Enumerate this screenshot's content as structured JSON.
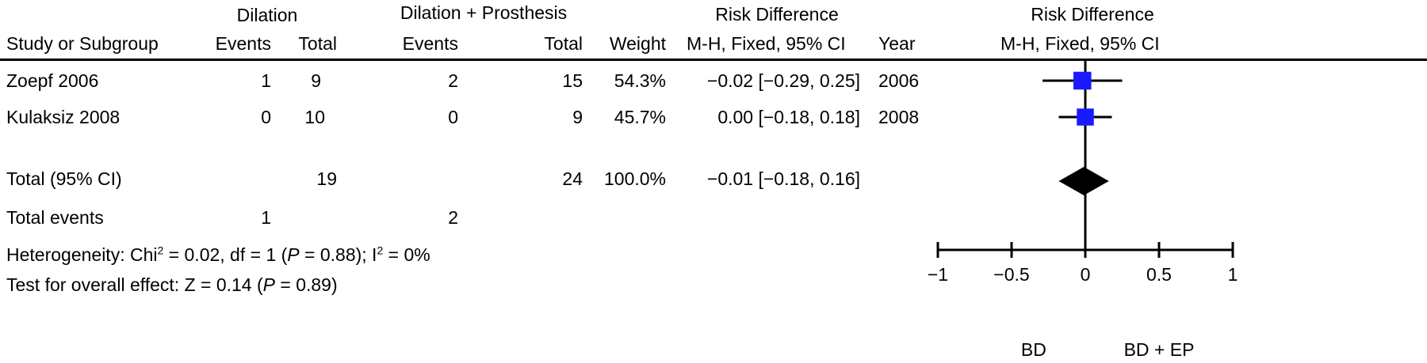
{
  "header": {
    "group1": "Dilation",
    "group2": "Dilation + Prosthesis",
    "risk_difference_table": "Risk Difference",
    "risk_difference_plot": "Risk Difference",
    "col_study": "Study or Subgroup",
    "col_events1": "Events",
    "col_total1": "Total",
    "col_events2": "Events",
    "col_total2": "Total",
    "col_weight": "Weight",
    "col_method_table": "M-H, Fixed, 95% CI",
    "col_year": "Year",
    "col_method_plot": "M-H, Fixed, 95% CI"
  },
  "rows": [
    {
      "study": "Zoepf 2006",
      "events1": "1",
      "total1": "9",
      "events2": "2",
      "total2": "15",
      "weight": "54.3%",
      "rd": "−0.02 [−0.29, 0.25]",
      "year": "2006"
    },
    {
      "study": "Kulaksiz 2008",
      "events1": "0",
      "total1": "10",
      "events2": "0",
      "total2": "9",
      "weight": "45.7%",
      "rd": "0.00 [−0.18, 0.18]",
      "year": "2008"
    }
  ],
  "total_row": {
    "label": "Total (95% CI)",
    "total1": "19",
    "total2": "24",
    "weight": "100.0%",
    "rd": "−0.01 [−0.18, 0.16]"
  },
  "events_row": {
    "label": "Total events",
    "events1": "1",
    "events2": "2"
  },
  "heterogeneity": {
    "prefix": "Heterogeneity: Chi",
    "sup1": "2",
    "mid1": " = 0.02, df = 1 (",
    "p": "P",
    "mid2": " = 0.88); I",
    "sup2": "2",
    "end": " = 0%"
  },
  "overall_effect": {
    "prefix": "Test for overall effect: Z = 0.14 (",
    "p": "P",
    "end": " = 0.89)"
  },
  "chart_data": {
    "type": "forest",
    "xlim": [
      -1,
      1
    ],
    "ticks": [
      -1,
      -0.5,
      0,
      0.5,
      1
    ],
    "tick_labels": [
      "−1",
      "−0.5",
      "0",
      "0.5",
      "1"
    ],
    "favours_left": "BD",
    "favours_right": "BD + EP",
    "studies": [
      {
        "name": "Zoepf 2006",
        "estimate": -0.02,
        "lower": -0.29,
        "upper": 0.25,
        "weight": 54.3
      },
      {
        "name": "Kulaksiz 2008",
        "estimate": 0.0,
        "lower": -0.18,
        "upper": 0.18,
        "weight": 45.7
      }
    ],
    "pooled": {
      "estimate": -0.01,
      "lower": -0.18,
      "upper": 0.16
    },
    "colors": {
      "marker": "#1a1aff",
      "line": "#000000",
      "diamond": "#000000"
    }
  }
}
